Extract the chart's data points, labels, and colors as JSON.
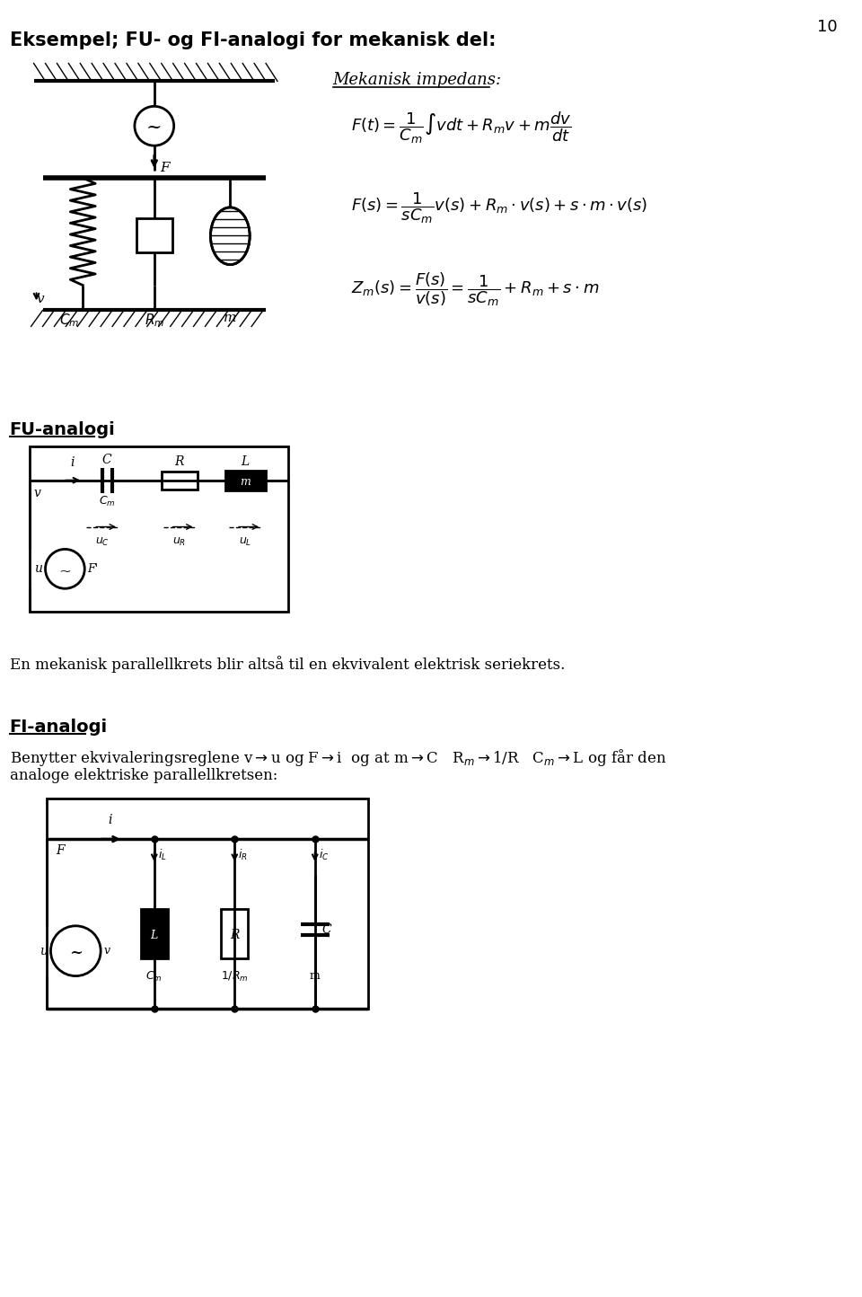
{
  "title": "Eksempel; FU- og FI-analogi for mekanisk del:",
  "page_num": "10",
  "bg_color": "#ffffff",
  "text_color": "#000000",
  "mekanisk_impedans": "Mekanisk impedans:",
  "fu_label": "FU-analogi",
  "fi_label": "FI-analogi",
  "series_text": "En mekanisk parallellkrets blir altså til en ekvivalent elektrisk seriekrets.",
  "fi_line1": "Benytter ekvivaleringsreglene v",
  "fi_line2": "analoge elektriske parallellkretsen:"
}
